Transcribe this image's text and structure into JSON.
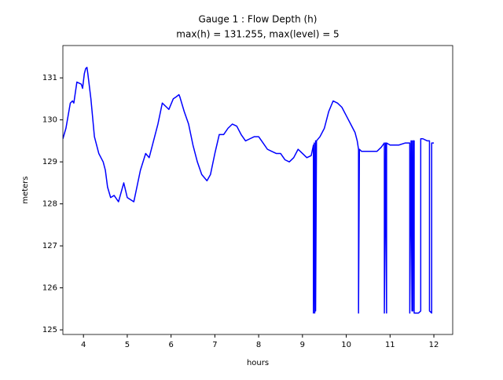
{
  "chart_data": {
    "type": "line",
    "title": "Gauge 1 : Flow Depth (h)",
    "subtitle": "max(h) = 131.255,    max(level) = 5",
    "x_label": "hours",
    "y_label": "meters",
    "color": "#0000ff",
    "xlim": [
      3.53,
      12.43
    ],
    "ylim": [
      124.89,
      131.77
    ],
    "xticks": [
      4,
      5,
      6,
      7,
      8,
      9,
      10,
      11,
      12
    ],
    "yticks": [
      125,
      126,
      127,
      128,
      129,
      130,
      131
    ],
    "x": [
      3.53,
      3.6,
      3.7,
      3.75,
      3.78,
      3.85,
      3.95,
      3.98,
      4.02,
      4.05,
      4.08,
      4.1,
      4.17,
      4.25,
      4.35,
      4.45,
      4.5,
      4.55,
      4.62,
      4.7,
      4.8,
      4.92,
      5.0,
      5.15,
      5.2,
      5.3,
      5.42,
      5.5,
      5.6,
      5.7,
      5.8,
      5.9,
      5.95,
      6.05,
      6.12,
      6.18,
      6.2,
      6.3,
      6.4,
      6.5,
      6.6,
      6.7,
      6.82,
      6.9,
      7.0,
      7.1,
      7.2,
      7.3,
      7.4,
      7.5,
      7.6,
      7.7,
      7.8,
      7.9,
      8.0,
      8.1,
      8.2,
      8.3,
      8.4,
      8.5,
      8.6,
      8.7,
      8.8,
      8.9,
      9.0,
      9.1,
      9.2,
      9.25,
      9.25,
      9.27,
      9.28,
      9.3,
      9.3,
      9.32,
      9.4,
      9.5,
      9.6,
      9.7,
      9.8,
      9.9,
      10.0,
      10.1,
      10.2,
      10.25,
      10.28,
      10.28,
      10.3,
      10.35,
      10.5,
      10.7,
      10.8,
      10.87,
      10.87,
      10.9,
      10.92,
      10.92,
      11.0,
      11.1,
      11.2,
      11.35,
      11.45,
      11.45,
      11.48,
      11.5,
      11.5,
      11.52,
      11.53,
      11.55,
      11.55,
      11.65,
      11.7,
      11.7,
      11.75,
      11.85,
      11.9,
      11.9,
      11.95,
      11.95,
      12.0
    ],
    "values": [
      129.55,
      129.8,
      130.4,
      130.45,
      130.4,
      130.9,
      130.85,
      130.75,
      131.1,
      131.22,
      131.25,
      131.1,
      130.5,
      129.6,
      129.2,
      129.0,
      128.8,
      128.4,
      128.15,
      128.2,
      128.05,
      128.5,
      128.15,
      128.05,
      128.3,
      128.8,
      129.2,
      129.1,
      129.5,
      129.9,
      130.4,
      130.3,
      130.25,
      130.5,
      130.55,
      130.6,
      130.55,
      130.2,
      129.9,
      129.4,
      129.0,
      128.7,
      128.55,
      128.7,
      129.2,
      129.65,
      129.65,
      129.8,
      129.9,
      129.85,
      129.65,
      129.5,
      129.55,
      129.6,
      129.6,
      129.45,
      129.3,
      129.25,
      129.2,
      129.2,
      129.05,
      129.0,
      129.1,
      129.3,
      129.2,
      129.1,
      129.15,
      129.4,
      125.4,
      129.45,
      125.4,
      129.5,
      125.45,
      129.5,
      129.6,
      129.8,
      130.2,
      130.45,
      130.4,
      130.3,
      130.1,
      129.9,
      129.7,
      129.5,
      129.3,
      125.4,
      129.3,
      129.25,
      129.25,
      129.25,
      129.35,
      129.45,
      125.4,
      129.45,
      125.4,
      129.45,
      129.4,
      129.4,
      129.4,
      129.45,
      129.45,
      125.4,
      129.5,
      125.45,
      129.5,
      125.45,
      129.5,
      129.5,
      125.4,
      125.4,
      125.45,
      129.55,
      129.55,
      129.5,
      129.5,
      125.45,
      125.4,
      129.45,
      129.45
    ]
  }
}
